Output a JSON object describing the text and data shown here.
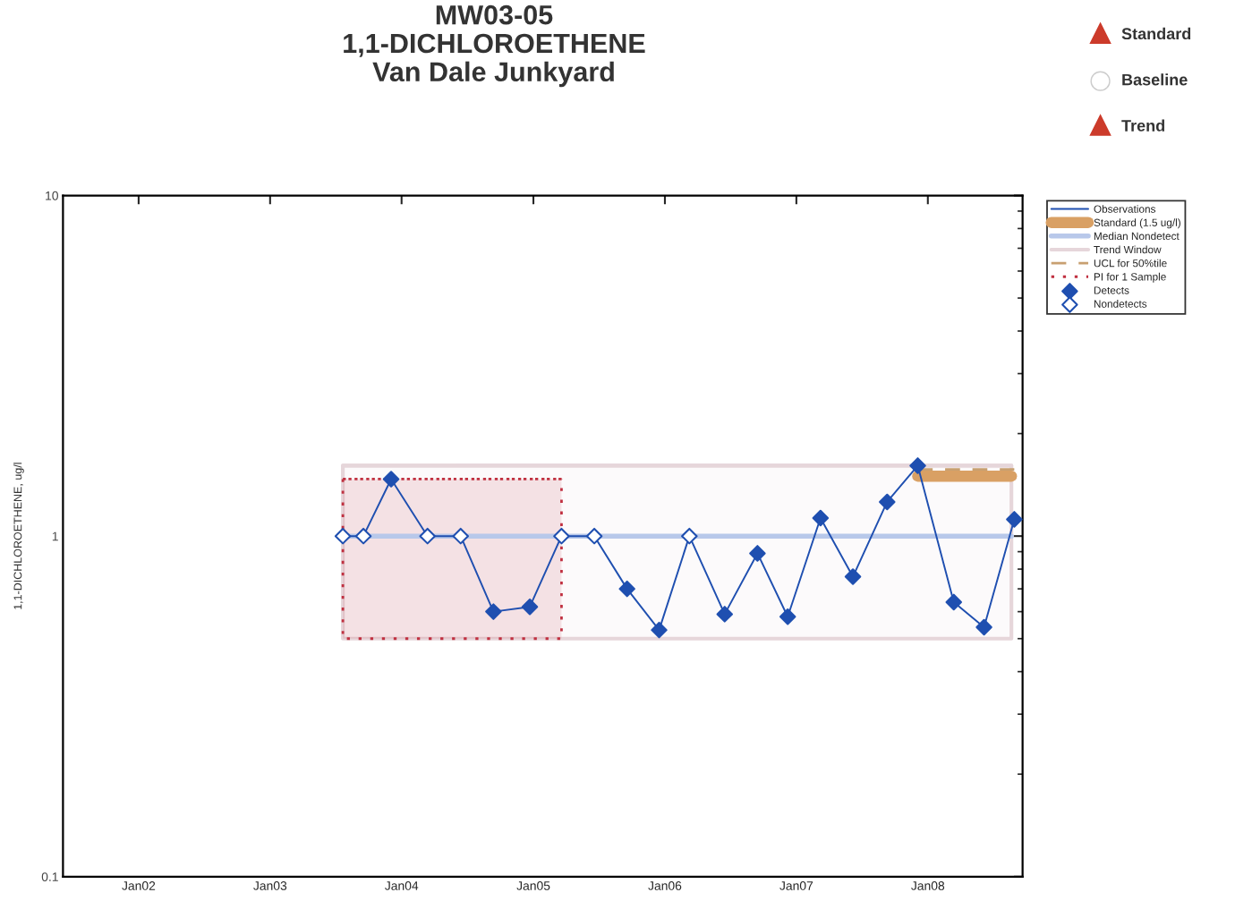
{
  "chart_data": {
    "type": "line",
    "title": "MW03-05\n1,1-DICHLOROETHENE\nVan Dale Junkyard",
    "ylabel": "1,1-DICHLOROETHENE, ug/l",
    "annotations": [
      "Standard",
      "Baseline",
      "Trend"
    ],
    "log": "y",
    "xlim": [
      "2001-06-05",
      "2008-09-20"
    ],
    "xticks": [
      {
        "value": "2002-01-01",
        "label": "Jan02"
      },
      {
        "value": "2003-01-01",
        "label": "Jan03"
      },
      {
        "value": "2004-01-01",
        "label": "Jan04"
      },
      {
        "value": "2005-01-01",
        "label": "Jan05"
      },
      {
        "value": "2006-01-01",
        "label": "Jan06"
      },
      {
        "value": "2007-01-01",
        "label": "Jan07"
      },
      {
        "value": "2008-01-01",
        "label": "Jan08"
      }
    ],
    "ylim": [
      0.1,
      10
    ],
    "yticks": [
      0.1,
      1,
      10
    ],
    "grid": false,
    "legend": "top right",
    "series": [
      {
        "name": "Observations",
        "type": "line",
        "color": "#1f4fb0",
        "marker": "none",
        "line_style": "solid",
        "x": [
          "2003-07-22",
          "2003-09-17",
          "2003-12-03",
          "2004-03-13",
          "2004-06-13",
          "2004-09-12",
          "2004-12-22",
          "2005-03-20",
          "2005-06-19",
          "2005-09-18",
          "2005-12-16",
          "2006-03-10",
          "2006-06-16",
          "2006-09-15",
          "2006-12-08",
          "2007-03-09",
          "2007-06-07",
          "2007-09-10",
          "2007-12-04",
          "2008-03-13",
          "2008-06-05",
          "2008-08-28"
        ],
        "values": [
          1.0,
          1.0,
          1.47,
          1.0,
          1.0,
          0.6,
          0.62,
          1.0,
          1.0,
          0.7,
          0.53,
          1.0,
          0.59,
          0.89,
          0.58,
          1.13,
          0.76,
          1.26,
          1.61,
          0.64,
          0.54,
          1.12
        ]
      },
      {
        "name": "Standard (1.5 ug/l)",
        "type": "line",
        "color": "#d9a064",
        "marker": "none",
        "line_style": "solid",
        "x": [
          "2007-12-04",
          "2008-08-20"
        ],
        "values": [
          1.5,
          1.5
        ]
      },
      {
        "name": "Median Nondetect",
        "type": "line",
        "color": "#b8c8ea",
        "marker": "none",
        "line_style": "solid",
        "x": [
          "2003-07-22",
          "2008-08-20"
        ],
        "values": [
          1.0,
          1.0
        ]
      },
      {
        "name": "Trend Window",
        "type": "line",
        "color": "#e6d6da",
        "marker": "none",
        "line_style": "solid",
        "x": [
          "2003-07-22",
          "2008-08-20"
        ],
        "values": [
          1.61,
          1.61
        ],
        "lower": [
          0.5,
          0.5
        ],
        "upper": [
          1.61,
          1.61
        ]
      },
      {
        "name": "UCL for 50%tile",
        "type": "line",
        "color": "#c8a070",
        "marker": "none",
        "line_style": "dashed",
        "x": [
          "2007-12-04",
          "2008-08-28"
        ],
        "values": [
          1.57,
          1.57
        ]
      },
      {
        "name": "PI for 1 Sample",
        "type": "line",
        "color": "#c03040",
        "marker": "none",
        "line_style": "dotted",
        "x": [
          "2003-07-22",
          "2005-03-20"
        ],
        "values": [
          1.47,
          1.47
        ],
        "lower": [
          0.5,
          0.5
        ],
        "upper": [
          1.47,
          1.47
        ]
      },
      {
        "name": "Detects",
        "type": "scatter",
        "color": "#1f4fb0",
        "marker": "diamond",
        "x": [
          "2003-12-03",
          "2004-09-12",
          "2004-12-22",
          "2005-09-18",
          "2005-12-16",
          "2006-06-16",
          "2006-09-15",
          "2006-12-08",
          "2007-03-09",
          "2007-06-07",
          "2007-09-10",
          "2007-12-04",
          "2008-03-13",
          "2008-06-05",
          "2008-08-28"
        ],
        "values": [
          1.47,
          0.6,
          0.62,
          0.7,
          0.53,
          0.59,
          0.89,
          0.58,
          1.13,
          0.76,
          1.26,
          1.61,
          0.64,
          0.54,
          1.12
        ]
      },
      {
        "name": "Nondetects",
        "type": "scatter",
        "color": "#ffffff",
        "marker": "diamond",
        "x": [
          "2003-07-22",
          "2003-09-17",
          "2004-03-13",
          "2004-06-13",
          "2005-03-20",
          "2005-06-19",
          "2006-03-10"
        ],
        "values": [
          1.0,
          1.0,
          1.0,
          1.0,
          1.0,
          1.0,
          1.0
        ]
      }
    ]
  }
}
